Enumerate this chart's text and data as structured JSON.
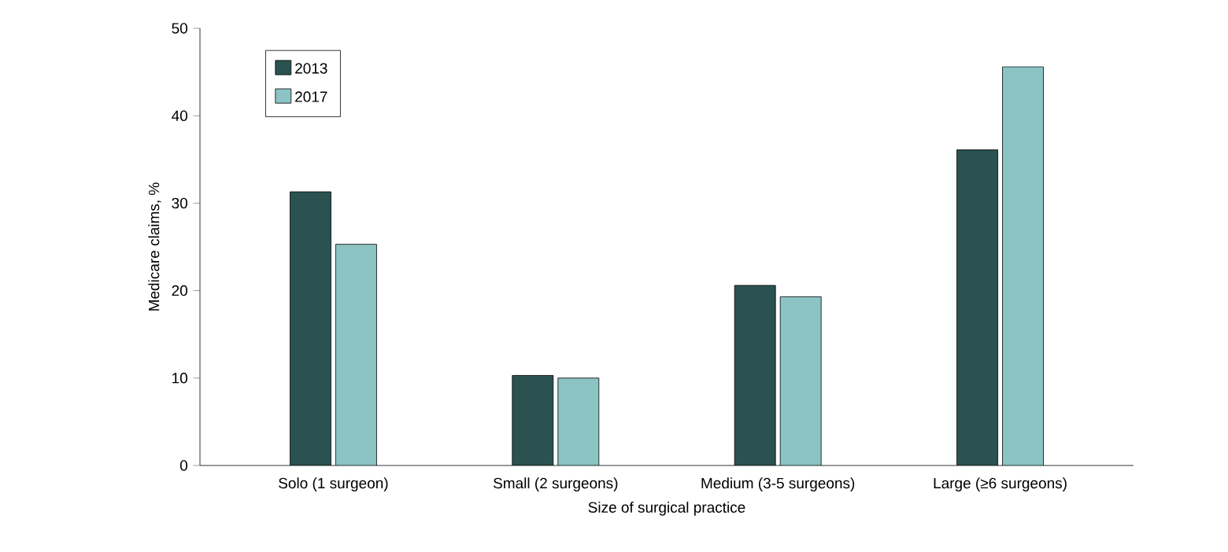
{
  "chart_data": {
    "type": "bar",
    "xlabel": "Size of surgical practice",
    "ylabel": "Medicare claims, %",
    "categories": [
      "Solo (1 surgeon)",
      "Small (2 surgeons)",
      "Medium (3-5 surgeons)",
      "Large (≥6 surgeons)"
    ],
    "series": [
      {
        "name": "2013",
        "color": "#2a5250",
        "values": [
          31.3,
          10.3,
          20.6,
          36.1
        ]
      },
      {
        "name": "2017",
        "color": "#8cc4c4",
        "values": [
          25.3,
          10.0,
          19.3,
          45.6
        ]
      }
    ],
    "ylim": [
      0,
      50
    ],
    "yticks": [
      0,
      10,
      20,
      30,
      40,
      50
    ],
    "grid": false,
    "legend": "top left"
  }
}
